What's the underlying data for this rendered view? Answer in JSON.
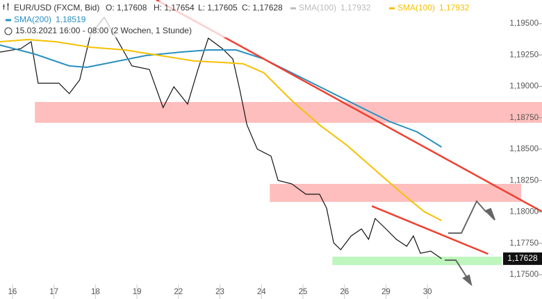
{
  "chart_data": {
    "type": "line",
    "header": {
      "symbol": "EUR/USD (FXCM, Bid)",
      "open": "O: 1,17608",
      "high": "H: 1,17654",
      "low": "L: 1,17605",
      "close": "C: 1,17628"
    },
    "legend": [
      {
        "name": "SMA(100)",
        "value": "1,17932",
        "color": "#bbbbbb"
      },
      {
        "name": "SMA(100)",
        "value": "1,17932",
        "color": "#f5c000"
      },
      {
        "name": "SMA(200)",
        "value": "1,18519",
        "color": "#2a8fc0"
      }
    ],
    "period": "15.03.2021 16:00 - 08:00 (2 Wochen, 1 Stunde)",
    "xlim": [
      -0.3,
      12.76
    ],
    "xticks": [
      {
        "value": 0,
        "label": "16"
      },
      {
        "value": 1,
        "label": "17"
      },
      {
        "value": 2,
        "label": "18"
      },
      {
        "value": 3,
        "label": "19"
      },
      {
        "value": 4,
        "label": "22"
      },
      {
        "value": 5,
        "label": "23"
      },
      {
        "value": 6,
        "label": "24"
      },
      {
        "value": 7,
        "label": "25"
      },
      {
        "value": 8,
        "label": "26"
      },
      {
        "value": 9,
        "label": "29"
      },
      {
        "value": 10,
        "label": "30"
      }
    ],
    "ylim": [
      1.17434,
      1.19688
    ],
    "yticks": [
      {
        "value": 1.195,
        "label": "1,19500"
      },
      {
        "value": 1.1925,
        "label": "1,19250"
      },
      {
        "value": 1.19,
        "label": "1,19000"
      },
      {
        "value": 1.1875,
        "label": "1,18750"
      },
      {
        "value": 1.185,
        "label": "1,18500"
      },
      {
        "value": 1.1825,
        "label": "1,18250"
      },
      {
        "value": 1.18,
        "label": "1,18000"
      },
      {
        "value": 1.1775,
        "label": "1,17750"
      },
      {
        "value": 1.175,
        "label": "1,17500"
      }
    ],
    "last_price": {
      "value": 1.17628,
      "label": "1,17628"
    },
    "series": [
      {
        "color": "#111111",
        "x": [
          -0.3,
          0.2,
          0.45,
          0.62,
          1.12,
          1.37,
          1.62,
          1.88,
          2.21,
          2.55,
          2.88,
          3.3,
          3.63,
          3.89,
          4.22,
          4.47,
          4.72,
          5.06,
          5.31,
          5.48,
          5.65,
          5.9,
          6.23,
          6.4,
          6.73,
          7.07,
          7.4,
          7.57,
          7.74,
          7.91,
          8.16,
          8.41,
          8.58,
          8.74,
          9.0,
          9.25,
          9.5,
          9.66,
          9.83,
          10.08,
          10.34
        ],
        "values": [
          1.19273,
          1.19301,
          1.19356,
          1.19025,
          1.19025,
          1.18942,
          1.19052,
          1.19412,
          1.1955,
          1.19356,
          1.19163,
          1.19135,
          1.18831,
          1.18997,
          1.18859,
          1.19135,
          1.19384,
          1.19301,
          1.19218,
          1.1897,
          1.18693,
          1.185,
          1.18445,
          1.18251,
          1.18224,
          1.18141,
          1.18141,
          1.1803,
          1.17754,
          1.17699,
          1.17809,
          1.17865,
          1.17782,
          1.17948,
          1.17865,
          1.17782,
          1.17727,
          1.17809,
          1.17671,
          1.17688,
          1.17628
        ]
      },
      {
        "color": "#2a8fc0",
        "x": [
          -0.3,
          0.54,
          1.37,
          1.79,
          2.38,
          3.22,
          4.05,
          4.72,
          5.39,
          6.06,
          6.73,
          7.57,
          8.41,
          9.08,
          9.75,
          10.34
        ],
        "values": [
          1.19329,
          1.19257,
          1.19163,
          1.19152,
          1.19191,
          1.19246,
          1.19273,
          1.1929,
          1.1929,
          1.19218,
          1.19108,
          1.1897,
          1.18831,
          1.18721,
          1.18638,
          1.18517
        ]
      },
      {
        "color": "#f5c000",
        "x": [
          -0.3,
          0.37,
          1.04,
          1.88,
          2.71,
          3.55,
          4.39,
          5.06,
          5.56,
          6.06,
          6.73,
          7.4,
          8.07,
          8.74,
          9.41,
          9.92,
          10.34
        ],
        "values": [
          1.19356,
          1.19373,
          1.19356,
          1.19312,
          1.1929,
          1.19246,
          1.19202,
          1.19191,
          1.1918,
          1.19108,
          1.18887,
          1.18693,
          1.18528,
          1.18334,
          1.18141,
          1.18003,
          1.17931
        ]
      }
    ],
    "zones": [
      {
        "color": "#ffb3b3",
        "x": [
          0.54,
          12.76
        ],
        "y": [
          1.1871,
          1.18876
        ]
      },
      {
        "color": "#ffb3b3",
        "x": [
          6.2,
          12.26
        ],
        "y": [
          1.1808,
          1.18224
        ]
      },
      {
        "color": "#b3f5b3",
        "x": [
          7.71,
          11.79
        ],
        "y": [
          1.17577,
          1.17644
        ]
      }
    ],
    "trendlines": [
      {
        "color": "#f04030",
        "x": [
          3.47,
          12.76
        ],
        "y": [
          1.19688,
          1.18003
        ]
      },
      {
        "color": "#f04030",
        "x": [
          8.66,
          11.46
        ],
        "y": [
          1.18047,
          1.17666
        ]
      }
    ]
  }
}
